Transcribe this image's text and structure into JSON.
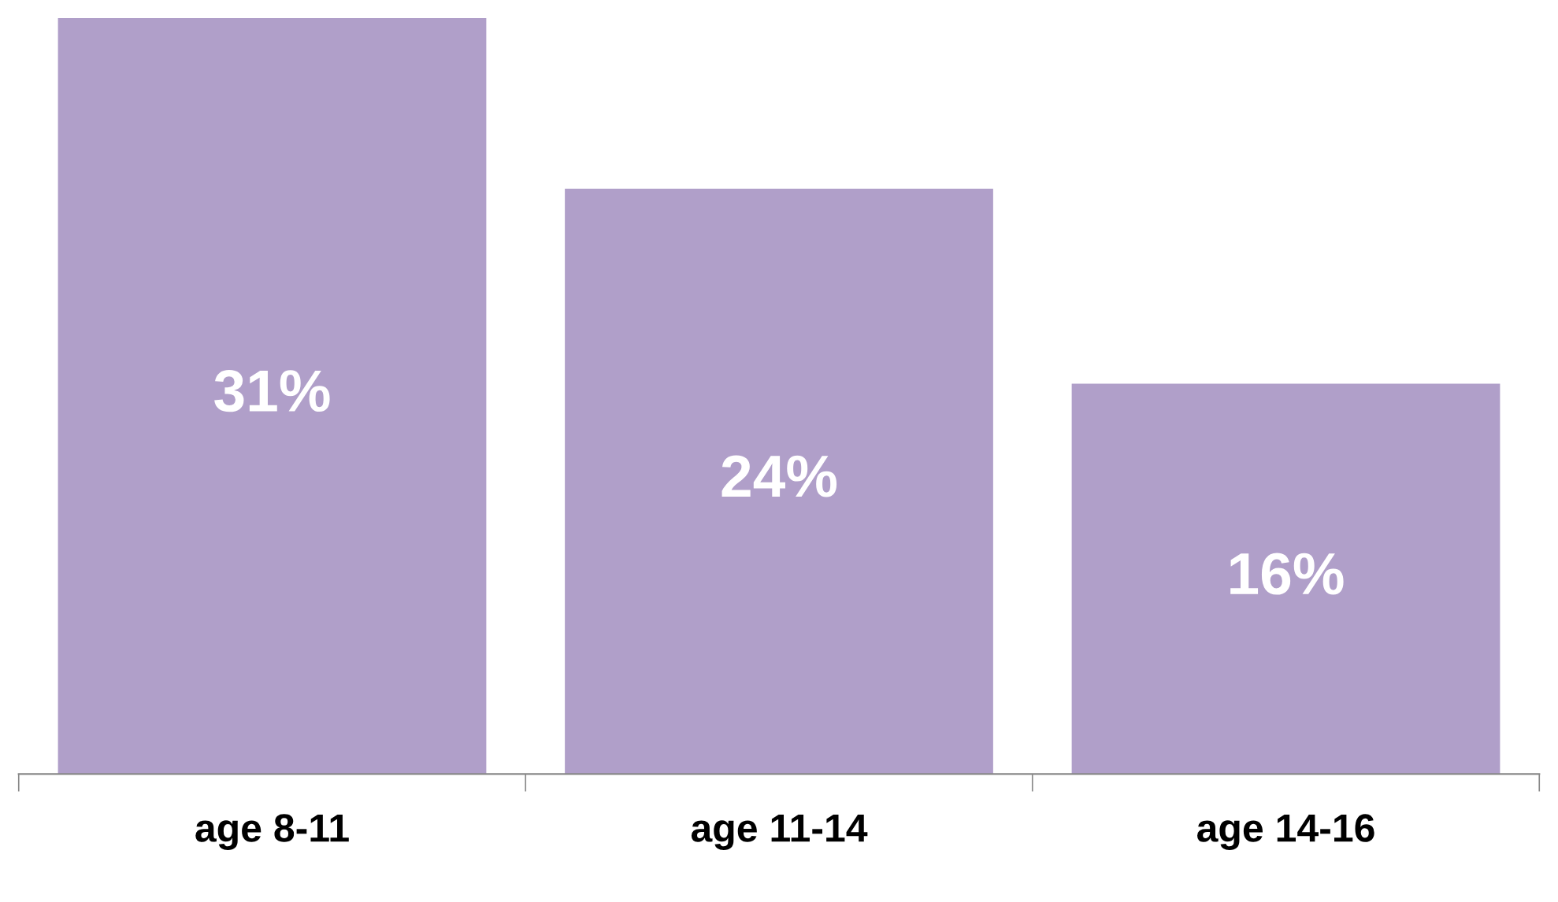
{
  "chart_data": {
    "type": "bar",
    "categories": [
      "age 8-11",
      "age 11-14",
      "age 14-16"
    ],
    "values": [
      31,
      24,
      16
    ],
    "color": "#b09fc9",
    "data_labels": true,
    "value_labels": [
      "31%",
      "24%",
      "16%"
    ],
    "grid": false,
    "legend": false
  }
}
